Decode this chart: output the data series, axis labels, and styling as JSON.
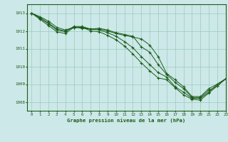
{
  "title": "Graphe pression niveau de la mer (hPa)",
  "background_color": "#cde8e8",
  "grid_color": "#99ccbb",
  "line_color": "#1a5c1a",
  "xlim": [
    -0.5,
    23
  ],
  "ylim": [
    1007.5,
    1013.5
  ],
  "yticks": [
    1008,
    1009,
    1010,
    1011,
    1012,
    1013
  ],
  "xticks": [
    0,
    1,
    2,
    3,
    4,
    5,
    6,
    7,
    8,
    9,
    10,
    11,
    12,
    13,
    14,
    15,
    16,
    17,
    18,
    19,
    20,
    21,
    22,
    23
  ],
  "series": [
    [
      1013.0,
      1012.8,
      1012.55,
      1012.2,
      1012.05,
      1012.2,
      1012.15,
      1012.1,
      1012.1,
      1012.0,
      1011.85,
      1011.75,
      1011.65,
      1011.55,
      1011.2,
      1010.55,
      1009.6,
      1009.25,
      1008.85,
      1008.3,
      1008.3,
      1008.75,
      1009.0,
      1009.3
    ],
    [
      1013.0,
      1012.75,
      1012.45,
      1012.1,
      1012.0,
      1012.2,
      1012.2,
      1012.1,
      1012.15,
      1012.05,
      1011.9,
      1011.8,
      1011.7,
      1011.1,
      1010.8,
      1010.1,
      1009.55,
      1009.1,
      1008.75,
      1008.25,
      1008.25,
      1008.65,
      1008.9,
      1009.3
    ],
    [
      1013.0,
      1012.7,
      1012.4,
      1012.05,
      1011.95,
      1012.25,
      1012.25,
      1012.1,
      1012.05,
      1011.9,
      1011.7,
      1011.4,
      1011.05,
      1010.55,
      1010.1,
      1009.65,
      1009.4,
      1008.85,
      1008.55,
      1008.2,
      1008.2,
      1008.55,
      1009.0,
      1009.3
    ],
    [
      1013.0,
      1012.65,
      1012.3,
      1011.95,
      1011.85,
      1012.2,
      1012.2,
      1012.0,
      1011.95,
      1011.75,
      1011.5,
      1011.15,
      1010.7,
      1010.2,
      1009.75,
      1009.35,
      1009.25,
      1008.8,
      1008.4,
      1008.15,
      1008.1,
      1008.5,
      1008.9,
      1009.3
    ]
  ]
}
